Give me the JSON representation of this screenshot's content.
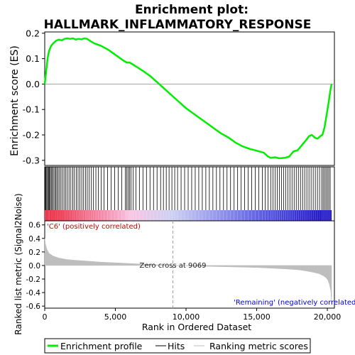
{
  "title_lines": [
    "Enrichment plot:",
    "HALLMARK_INFLAMMATORY_RESPONSE"
  ],
  "colors": {
    "es_line": "#00ee00",
    "hits": "#000000",
    "metric_fill": "#bebebe",
    "zero_cross_line": "#a0a0a0",
    "positive_label": "#cc0000",
    "negative_label": "#0000cc",
    "heatmap_scale": [
      "#e8132a",
      "#f26f8b",
      "#f8c6e4",
      "#ccd0f2",
      "#6a6ae6",
      "#1e14c8"
    ]
  },
  "chart_data": [
    {
      "type": "line",
      "panel": "enrichment",
      "ylabel": "Enrichment score (ES)",
      "xlim": [
        0,
        20500
      ],
      "ylim": [
        -0.32,
        0.205
      ],
      "yticks": [
        0.2,
        0.1,
        0.0,
        -0.1,
        -0.2,
        -0.3
      ],
      "ytick_labels": [
        "0.2",
        "0.1",
        "0.0",
        "-0.1",
        "-0.2",
        "-0.3"
      ],
      "grid": false,
      "series": [
        {
          "name": "Enrichment profile",
          "x": [
            0,
            100,
            200,
            300,
            450,
            600,
            800,
            1000,
            1200,
            1400,
            1600,
            1800,
            2000,
            2200,
            2400,
            2600,
            2800,
            3000,
            3200,
            3500,
            4000,
            4500,
            5000,
            5500,
            5800,
            6000,
            6300,
            7000,
            7500,
            8000,
            8500,
            9000,
            9500,
            10000,
            10500,
            11000,
            11500,
            12000,
            12500,
            13000,
            13500,
            14000,
            14500,
            15000,
            15500,
            15800,
            16000,
            16300,
            16600,
            17000,
            17300,
            17600,
            17900,
            18200,
            18500,
            18700,
            18900,
            19100,
            19300,
            19500,
            19650,
            19800,
            19950,
            20100,
            20200,
            20300
          ],
          "y": [
            0.0,
            0.05,
            0.1,
            0.13,
            0.15,
            0.16,
            0.17,
            0.175,
            0.172,
            0.178,
            0.18,
            0.178,
            0.18,
            0.175,
            0.178,
            0.176,
            0.18,
            0.178,
            0.17,
            0.16,
            0.15,
            0.135,
            0.115,
            0.095,
            0.085,
            0.085,
            0.075,
            0.05,
            0.03,
            0.005,
            -0.02,
            -0.045,
            -0.07,
            -0.095,
            -0.115,
            -0.135,
            -0.155,
            -0.175,
            -0.195,
            -0.21,
            -0.23,
            -0.245,
            -0.255,
            -0.262,
            -0.27,
            -0.285,
            -0.29,
            -0.288,
            -0.292,
            -0.29,
            -0.285,
            -0.265,
            -0.26,
            -0.24,
            -0.22,
            -0.205,
            -0.2,
            -0.21,
            -0.215,
            -0.205,
            -0.2,
            -0.17,
            -0.12,
            -0.07,
            -0.03,
            0.0
          ]
        }
      ]
    },
    {
      "type": "hits",
      "panel": "hits",
      "series_name": "Hits",
      "x": [
        40,
        90,
        150,
        210,
        270,
        330,
        390,
        460,
        530,
        610,
        700,
        780,
        860,
        950,
        1050,
        1150,
        1260,
        1370,
        1490,
        1600,
        1720,
        1850,
        1980,
        2100,
        2230,
        2360,
        2490,
        2620,
        2750,
        2880,
        3010,
        3150,
        3300,
        3450,
        3620,
        3800,
        4000,
        4200,
        4450,
        4700,
        4950,
        5200,
        5450,
        5700,
        5800,
        5900,
        6000,
        6100,
        6250,
        6450,
        6700,
        6950,
        7200,
        7450,
        7700,
        7950,
        8200,
        8400,
        8600,
        8800,
        9000,
        9200,
        9400,
        9650,
        9900,
        10150,
        10400,
        10650,
        10900,
        11150,
        11400,
        11650,
        11900,
        12150,
        12400,
        12650,
        12900,
        13150,
        13400,
        13650,
        13900,
        14150,
        14400,
        14650,
        14900,
        15150,
        15400,
        15600,
        15800,
        16000,
        16150,
        16300,
        16450,
        16600,
        16750,
        16900,
        17050,
        17200,
        17350,
        17500,
        17650,
        17800,
        17950,
        18100,
        18250,
        18400,
        18550,
        18700,
        18850,
        19000,
        19150,
        19300,
        19450,
        19600,
        19700,
        19800,
        19900,
        20000,
        20100,
        20200
      ]
    },
    {
      "type": "heatmap",
      "panel": "rank-color-bar",
      "xlim": [
        0,
        20500
      ],
      "stops": [
        {
          "x": 0,
          "color_index": 0
        },
        {
          "x": 3000,
          "color_index": 1
        },
        {
          "x": 6200,
          "color_index": 2
        },
        {
          "x": 9069,
          "color_index": 3
        },
        {
          "x": 14700,
          "color_index": 4
        },
        {
          "x": 19600,
          "color_index": 5
        },
        {
          "x": 20300,
          "color_index": 5
        }
      ]
    },
    {
      "type": "area",
      "panel": "ranked-metric",
      "ylabel": "Ranked list metric (Signal2Noise)",
      "xlabel": "Rank in Ordered Dataset",
      "xlim": [
        0,
        20500
      ],
      "ylim": [
        -0.63,
        0.66
      ],
      "xticks": [
        0,
        5000,
        10000,
        15000,
        20000
      ],
      "xtick_labels": [
        "0",
        "5,000",
        "10,000",
        "15,000",
        "20,000"
      ],
      "yticks": [
        0.6,
        0.4,
        0.2,
        0.0,
        -0.2,
        -0.4,
        -0.6
      ],
      "ytick_labels": [
        "0.6",
        "0.4",
        "0.2",
        "0.0",
        "-0.2",
        "-0.4",
        "-0.6"
      ],
      "series": [
        {
          "name": "Ranking metric scores",
          "x": [
            0,
            50,
            150,
            300,
            600,
            1000,
            1500,
            2000,
            3000,
            4000,
            5000,
            6000,
            7000,
            8000,
            9069,
            10000,
            11000,
            12000,
            13000,
            14000,
            15000,
            16000,
            17000,
            18000,
            18500,
            19000,
            19400,
            19700,
            19900,
            20050,
            20150,
            20250,
            20300
          ],
          "y": [
            0.4,
            0.32,
            0.24,
            0.18,
            0.14,
            0.11,
            0.09,
            0.08,
            0.065,
            0.05,
            0.04,
            0.03,
            0.02,
            0.01,
            0.0,
            -0.005,
            -0.01,
            -0.015,
            -0.02,
            -0.025,
            -0.03,
            -0.04,
            -0.05,
            -0.065,
            -0.08,
            -0.1,
            -0.12,
            -0.15,
            -0.18,
            -0.22,
            -0.28,
            -0.38,
            -0.58
          ]
        }
      ],
      "zero_cross": {
        "x": 9069,
        "label": "Zero cross at 9069"
      },
      "annotations": {
        "positive": "'C6' (positively correlated)",
        "negative": "'Remaining' (negatively correlated)"
      }
    }
  ],
  "legend": {
    "placement": "bottom",
    "items": [
      "Enrichment profile",
      "Hits",
      "Ranking metric scores"
    ]
  }
}
